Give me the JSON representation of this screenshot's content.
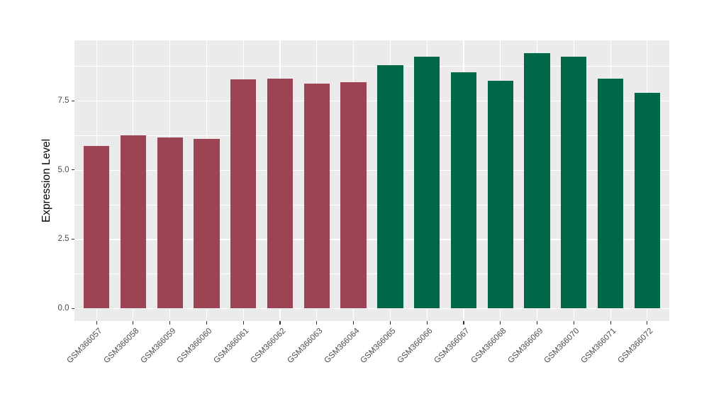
{
  "chart_data": {
    "type": "bar",
    "title": "",
    "xlabel": "",
    "ylabel": "Expression Level",
    "categories": [
      "GSM366057",
      "GSM366058",
      "GSM366059",
      "GSM366060",
      "GSM366061",
      "GSM366062",
      "GSM366063",
      "GSM366064",
      "GSM366065",
      "GSM366066",
      "GSM366067",
      "GSM366068",
      "GSM366069",
      "GSM366070",
      "GSM366071",
      "GSM366072"
    ],
    "values": [
      5.87,
      6.26,
      6.18,
      6.11,
      8.28,
      8.31,
      8.13,
      8.17,
      8.78,
      9.08,
      8.54,
      8.21,
      9.22,
      9.1,
      8.29,
      7.78
    ],
    "bar_colors": [
      "#9C4354",
      "#9C4354",
      "#9C4354",
      "#9C4354",
      "#9C4354",
      "#9C4354",
      "#9C4354",
      "#9C4354",
      "#006849",
      "#006849",
      "#006849",
      "#006849",
      "#006849",
      "#006849",
      "#006849",
      "#006849"
    ],
    "yticks": [
      0.0,
      2.5,
      5.0,
      7.5
    ],
    "ytick_labels": [
      "0.0",
      "2.5",
      "5.0",
      "7.5"
    ],
    "minor_gridlines": [
      1.25,
      3.75,
      6.25,
      8.75
    ],
    "ylim": [
      -0.46,
      9.68
    ],
    "grid": true,
    "legend_position": "none",
    "panel_background": "#EBEBEB",
    "gridline_color": "#FFFFFF",
    "bar_width_ratio": 0.7
  }
}
